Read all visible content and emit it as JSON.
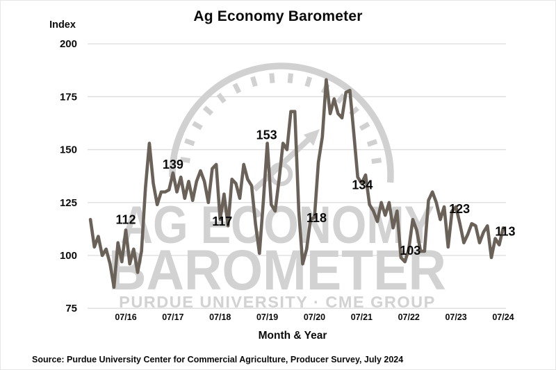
{
  "title": "Ag Economy Barometer",
  "y_axis_label": "Index",
  "x_axis_label": "Month & Year",
  "source_note": "Source: Purdue University Center for Commercial Agriculture, Producer Survey, July 2024",
  "watermark": {
    "line1": "AG ECONOMY",
    "line2": "BAROMETER",
    "line3": "PURDUE UNIVERSITY  ·  CME GROUP"
  },
  "colors": {
    "line": "#6a6259",
    "grid": "#dcdcdc",
    "text": "#0a0a0a",
    "watermark_text": "#d2d2d2",
    "watermark_gauge": "#d1d1d1",
    "background": "#ffffff"
  },
  "chart_data": {
    "type": "line",
    "title": "Ag Economy Barometer",
    "xlabel": "Month & Year",
    "ylabel": "Index",
    "ylim": [
      75,
      200
    ],
    "yticks": [
      200,
      175,
      150,
      125,
      100,
      75
    ],
    "xticks": [
      "07/16",
      "07/17",
      "07/18",
      "07/19",
      "07/20",
      "07/21",
      "07/22",
      "07/23",
      "07/24"
    ],
    "grid": "horizontal gridlines only",
    "legend": "none",
    "x_start_month": "10/15",
    "x_end_month": "07/24",
    "x_frequency": "monthly",
    "series": [
      {
        "name": "Ag Economy Barometer Index",
        "values": [
          117,
          104,
          109,
          100,
          103,
          96,
          85,
          106,
          97,
          112,
          96,
          103,
          92,
          102,
          132,
          153,
          134,
          124,
          130,
          130,
          131,
          139,
          130,
          137,
          127,
          135,
          126,
          135,
          140,
          135,
          125,
          141,
          143,
          117,
          129,
          114,
          136,
          134,
          127,
          143,
          136,
          133,
          115,
          101,
          126,
          153,
          124,
          121,
          136,
          153,
          150,
          168,
          168,
          121,
          96,
          103,
          117,
          118,
          144,
          156,
          183,
          167,
          174,
          167,
          165,
          177,
          178,
          158,
          137,
          134,
          138,
          124,
          121,
          116,
          125,
          119,
          125,
          113,
          121,
          99,
          97,
          103,
          117,
          112,
          102,
          102,
          126,
          130,
          125,
          117,
          123,
          104,
          121,
          123,
          115,
          106,
          110,
          115,
          114,
          106,
          111,
          114,
          99,
          108,
          105,
          113
        ]
      }
    ],
    "point_labels": [
      {
        "month": "07/16",
        "value": 112
      },
      {
        "month": "07/17",
        "value": 139
      },
      {
        "month": "07/18",
        "value": 117
      },
      {
        "month": "07/19",
        "value": 153
      },
      {
        "month": "07/20",
        "value": 118
      },
      {
        "month": "07/21",
        "value": 134
      },
      {
        "month": "07/22",
        "value": 103
      },
      {
        "month": "07/23",
        "value": 123
      },
      {
        "month": "07/24",
        "value": 113
      }
    ]
  }
}
